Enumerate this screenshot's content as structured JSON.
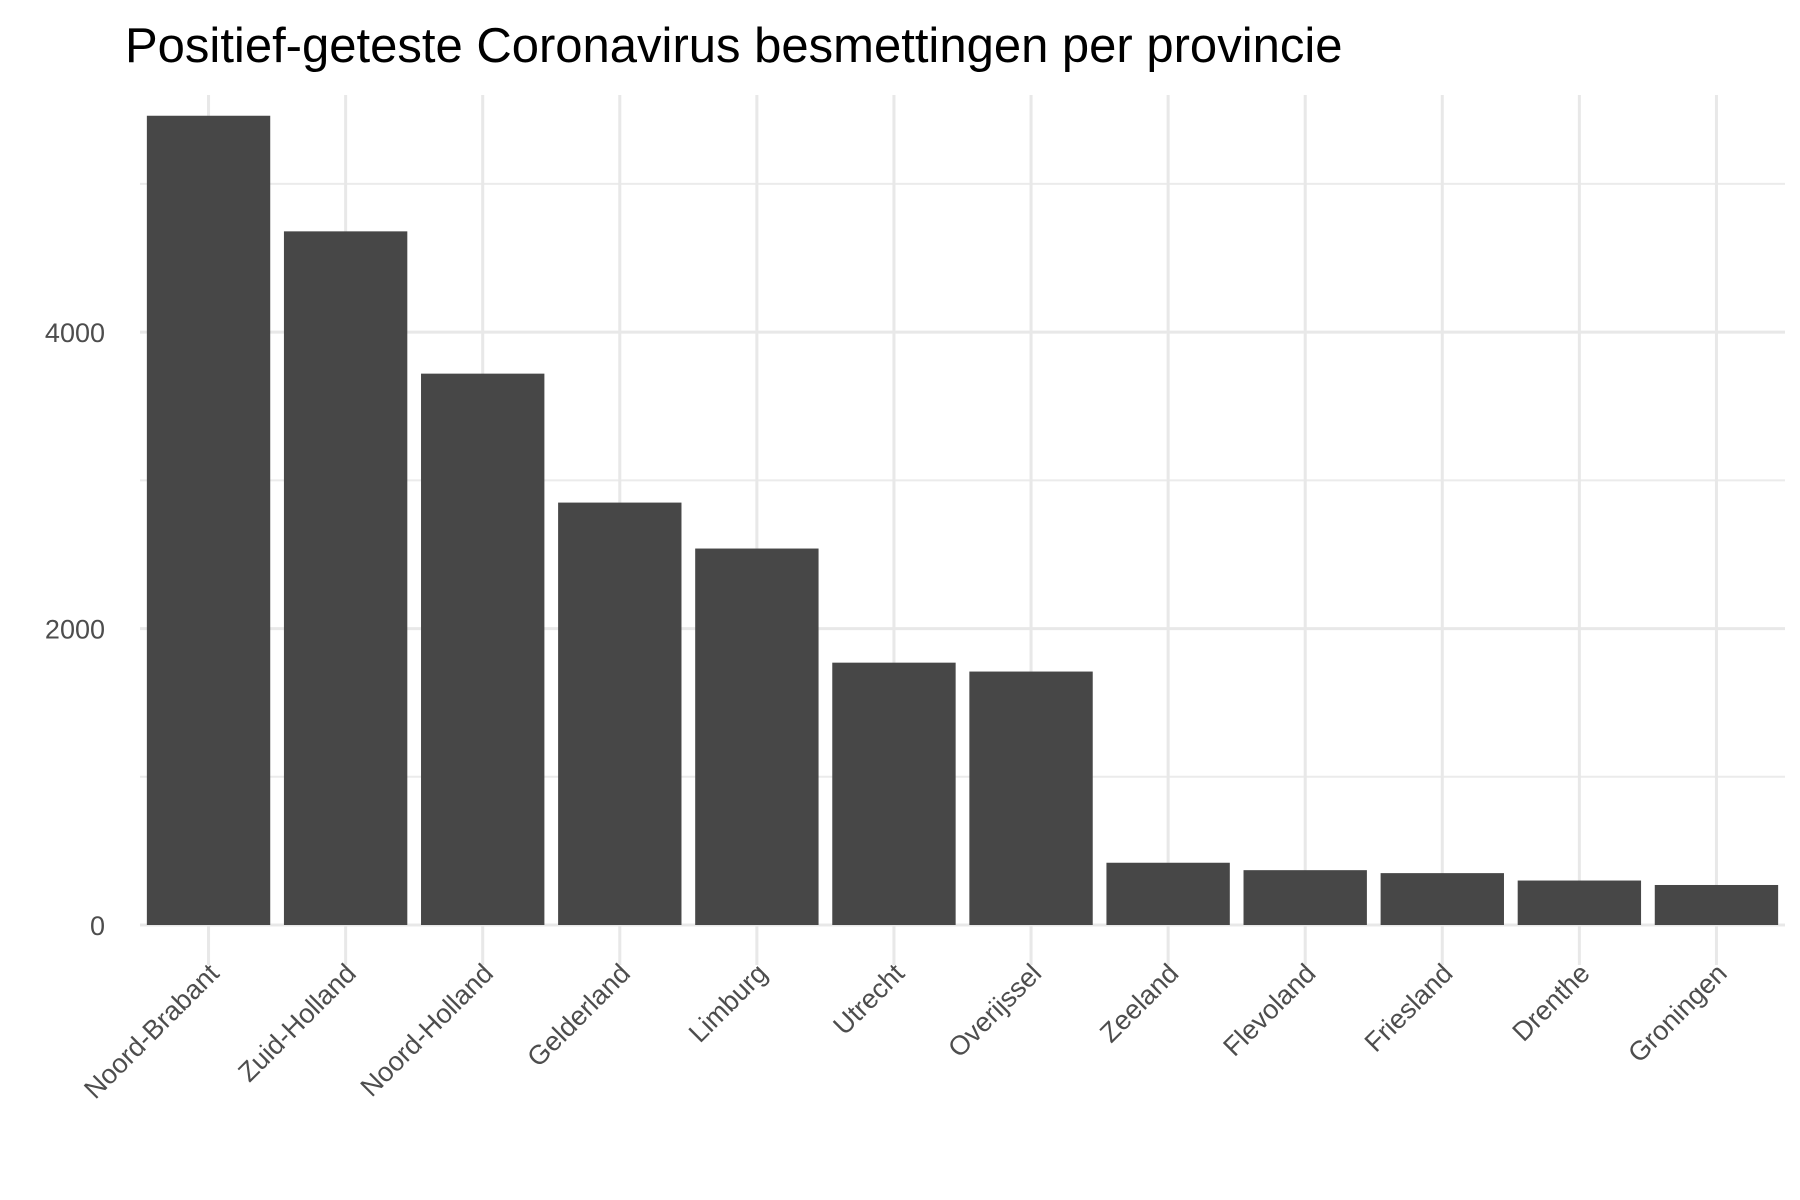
{
  "chart_data": {
    "type": "bar",
    "title": "Positief-geteste Coronavirus besmettingen per provincie",
    "xlabel": "",
    "ylabel": "",
    "categories": [
      "Noord-Brabant",
      "Zuid-Holland",
      "Noord-Holland",
      "Gelderland",
      "Limburg",
      "Utrecht",
      "Overijssel",
      "Zeeland",
      "Flevoland",
      "Friesland",
      "Drenthe",
      "Groningen"
    ],
    "values": [
      5460,
      4680,
      3720,
      2850,
      2540,
      1770,
      1710,
      420,
      370,
      350,
      300,
      270
    ],
    "ylim": [
      0,
      5600
    ],
    "yticks": [
      0,
      2000,
      4000
    ],
    "grid": true,
    "bar_color": "#474747",
    "legend": "none"
  }
}
